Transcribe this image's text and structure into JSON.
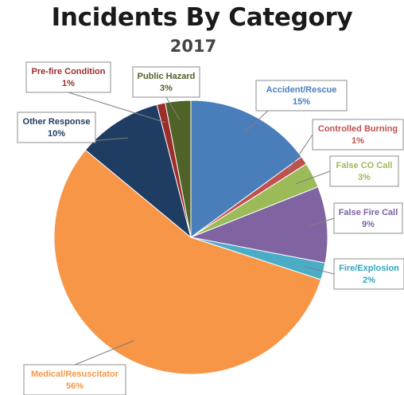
{
  "title": "Incidents By Category",
  "subtitle": "2017",
  "chart_data": {
    "type": "pie",
    "slices": [
      {
        "label": "Accident/Rescue",
        "value": 15,
        "value_label": "15%",
        "color": "#4a7ebb",
        "text_color": "#4a7ebb"
      },
      {
        "label": "Controlled Burning",
        "value": 1,
        "value_label": "1%",
        "color": "#c0504d",
        "text_color": "#c0504d"
      },
      {
        "label": "False CO Call",
        "value": 3,
        "value_label": "3%",
        "color": "#9bbb59",
        "text_color": "#9bbb59"
      },
      {
        "label": "False Fire Call",
        "value": 9,
        "value_label": "9%",
        "color": "#8064a2",
        "text_color": "#7f5fa6"
      },
      {
        "label": "Fire/Explosion",
        "value": 2,
        "value_label": "2%",
        "color": "#4bacc6",
        "text_color": "#31a5c0"
      },
      {
        "label": "Medical/Resuscitator",
        "value": 56,
        "value_label": "56%",
        "color": "#f79646",
        "text_color": "#f79646"
      },
      {
        "label": "Other Response",
        "value": 10,
        "value_label": "10%",
        "color": "#1f3d63",
        "text_color": "#1f3d63"
      },
      {
        "label": "Pre-fire Condition",
        "value": 1,
        "value_label": "1%",
        "color": "#9b2d2a",
        "text_color": "#9b2d2a"
      },
      {
        "label": "Public Hazard",
        "value": 3,
        "value_label": "3%",
        "color": "#4f6228",
        "text_color": "#4f6228"
      }
    ]
  }
}
